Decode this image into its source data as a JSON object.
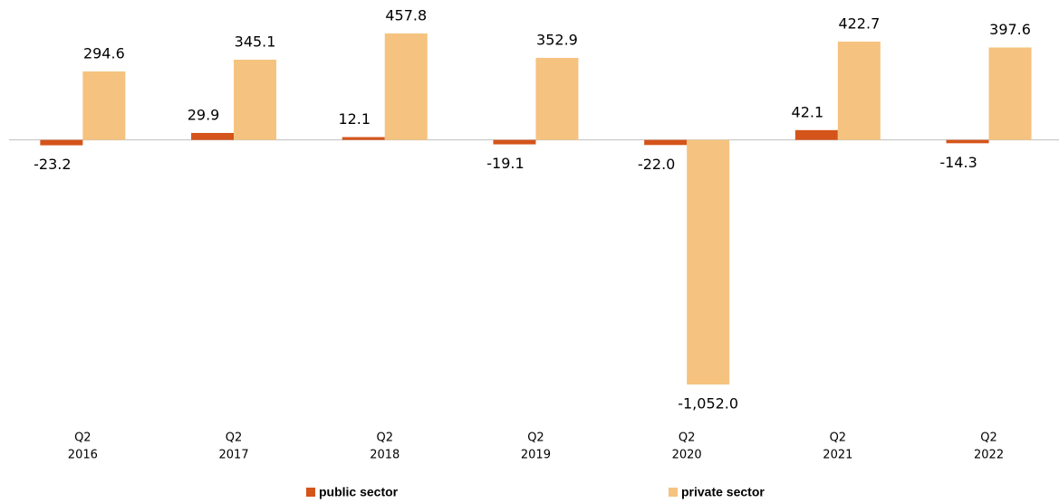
{
  "chart_data": {
    "type": "bar",
    "categories": [
      [
        "Q2",
        "2016"
      ],
      [
        "Q2",
        "2017"
      ],
      [
        "Q2",
        "2018"
      ],
      [
        "Q2",
        "2019"
      ],
      [
        "Q2",
        "2020"
      ],
      [
        "Q2",
        "2021"
      ],
      [
        "Q2",
        "2022"
      ]
    ],
    "series": [
      {
        "name": "public sector",
        "color": "#d4541a",
        "values": [
          -23.2,
          29.9,
          12.1,
          -19.1,
          -22.0,
          42.1,
          -14.3
        ],
        "value_labels": [
          "-23.2",
          "29.9",
          "12.1",
          "-19.1",
          "-22.0",
          "42.1",
          "-14.3"
        ]
      },
      {
        "name": "private sector",
        "color": "#f5c37f",
        "values": [
          294.6,
          345.1,
          457.8,
          352.9,
          -1052.0,
          422.7,
          397.6
        ],
        "value_labels": [
          "294.6",
          "345.1",
          "457.8",
          "352.9",
          "-1,052.0",
          "422.7",
          "397.6"
        ]
      }
    ],
    "legend": "bottom"
  }
}
